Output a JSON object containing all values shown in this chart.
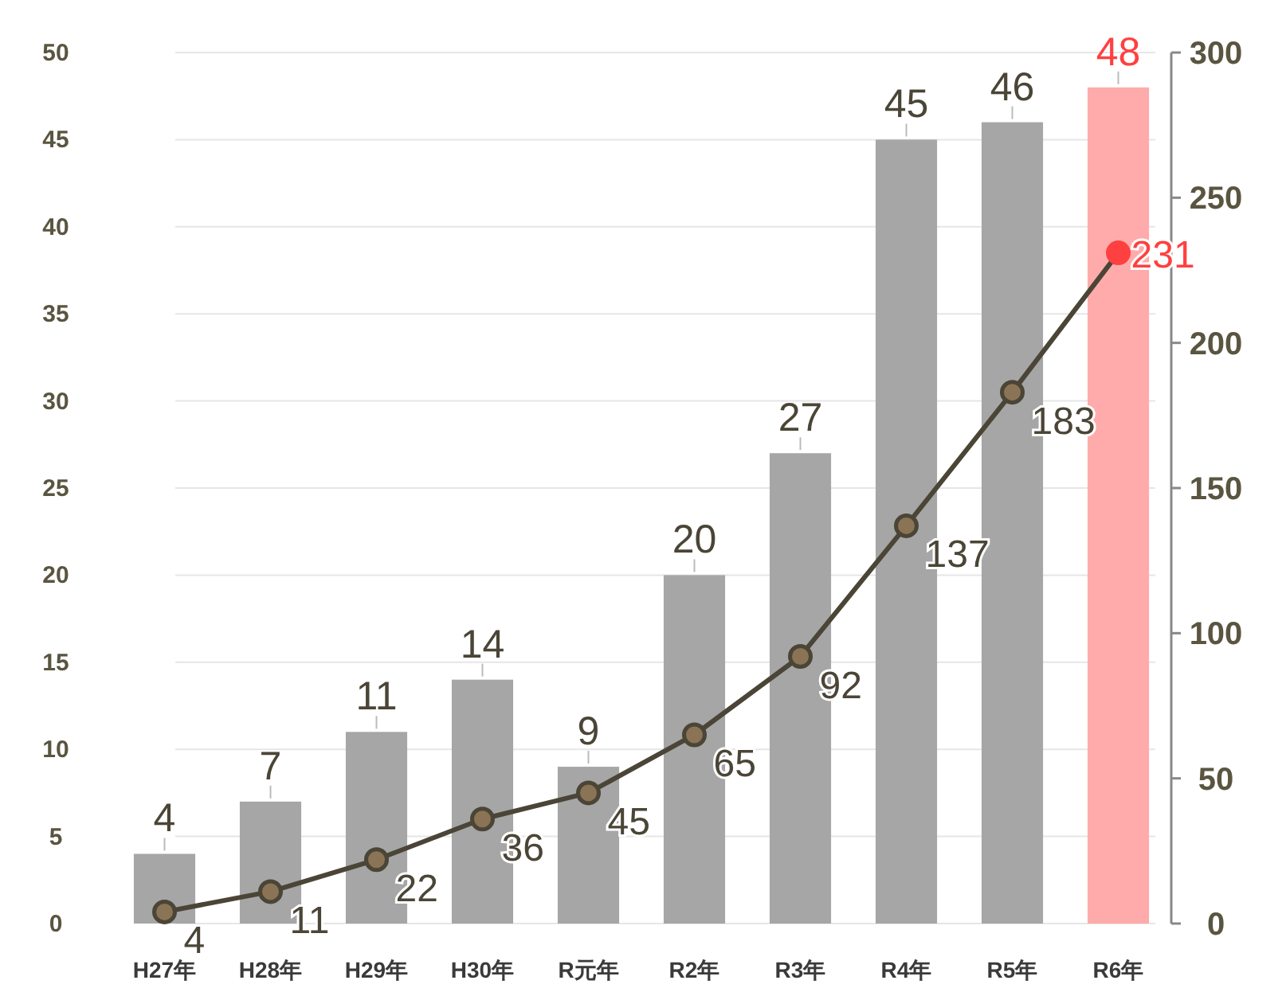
{
  "chart_data": {
    "type": "bar",
    "categories": [
      "H27年",
      "H28年",
      "H29年",
      "H30年",
      "R元年",
      "R2年",
      "R3年",
      "R4年",
      "R5年",
      "R6年"
    ],
    "series": [
      {
        "colors": [
          "#a6a6a6",
          "#a6a6a6",
          "#a6a6a6",
          "#a6a6a6",
          "#a6a6a6",
          "#a6a6a6",
          "#a6a6a6",
          "#a6a6a6",
          "#a6a6a6",
          "#ffabab"
        ],
        "values": [
          4,
          7,
          11,
          14,
          9,
          20,
          27,
          45,
          46,
          48
        ]
      },
      {
        "type": "line",
        "axis": "y2",
        "color": "#4a4536",
        "colors": [
          "#4a4536",
          "#4a4536",
          "#4a4536",
          "#4a4536",
          "#4a4536",
          "#4a4536",
          "#4a4536",
          "#4a4536",
          "#4a4536",
          "#ff4040"
        ],
        "values": [
          4,
          11,
          22,
          36,
          45,
          65,
          92,
          137,
          183,
          231
        ]
      }
    ],
    "ylim": [
      0,
      50
    ],
    "yticks": [
      0,
      5,
      10,
      15,
      20,
      25,
      30,
      35,
      40,
      45,
      50
    ],
    "y2lim": [
      0,
      300
    ],
    "y2ticks": [
      0,
      50,
      100,
      150,
      200,
      250,
      300
    ],
    "grid": "y",
    "data_labels": true,
    "marker": "circle"
  }
}
